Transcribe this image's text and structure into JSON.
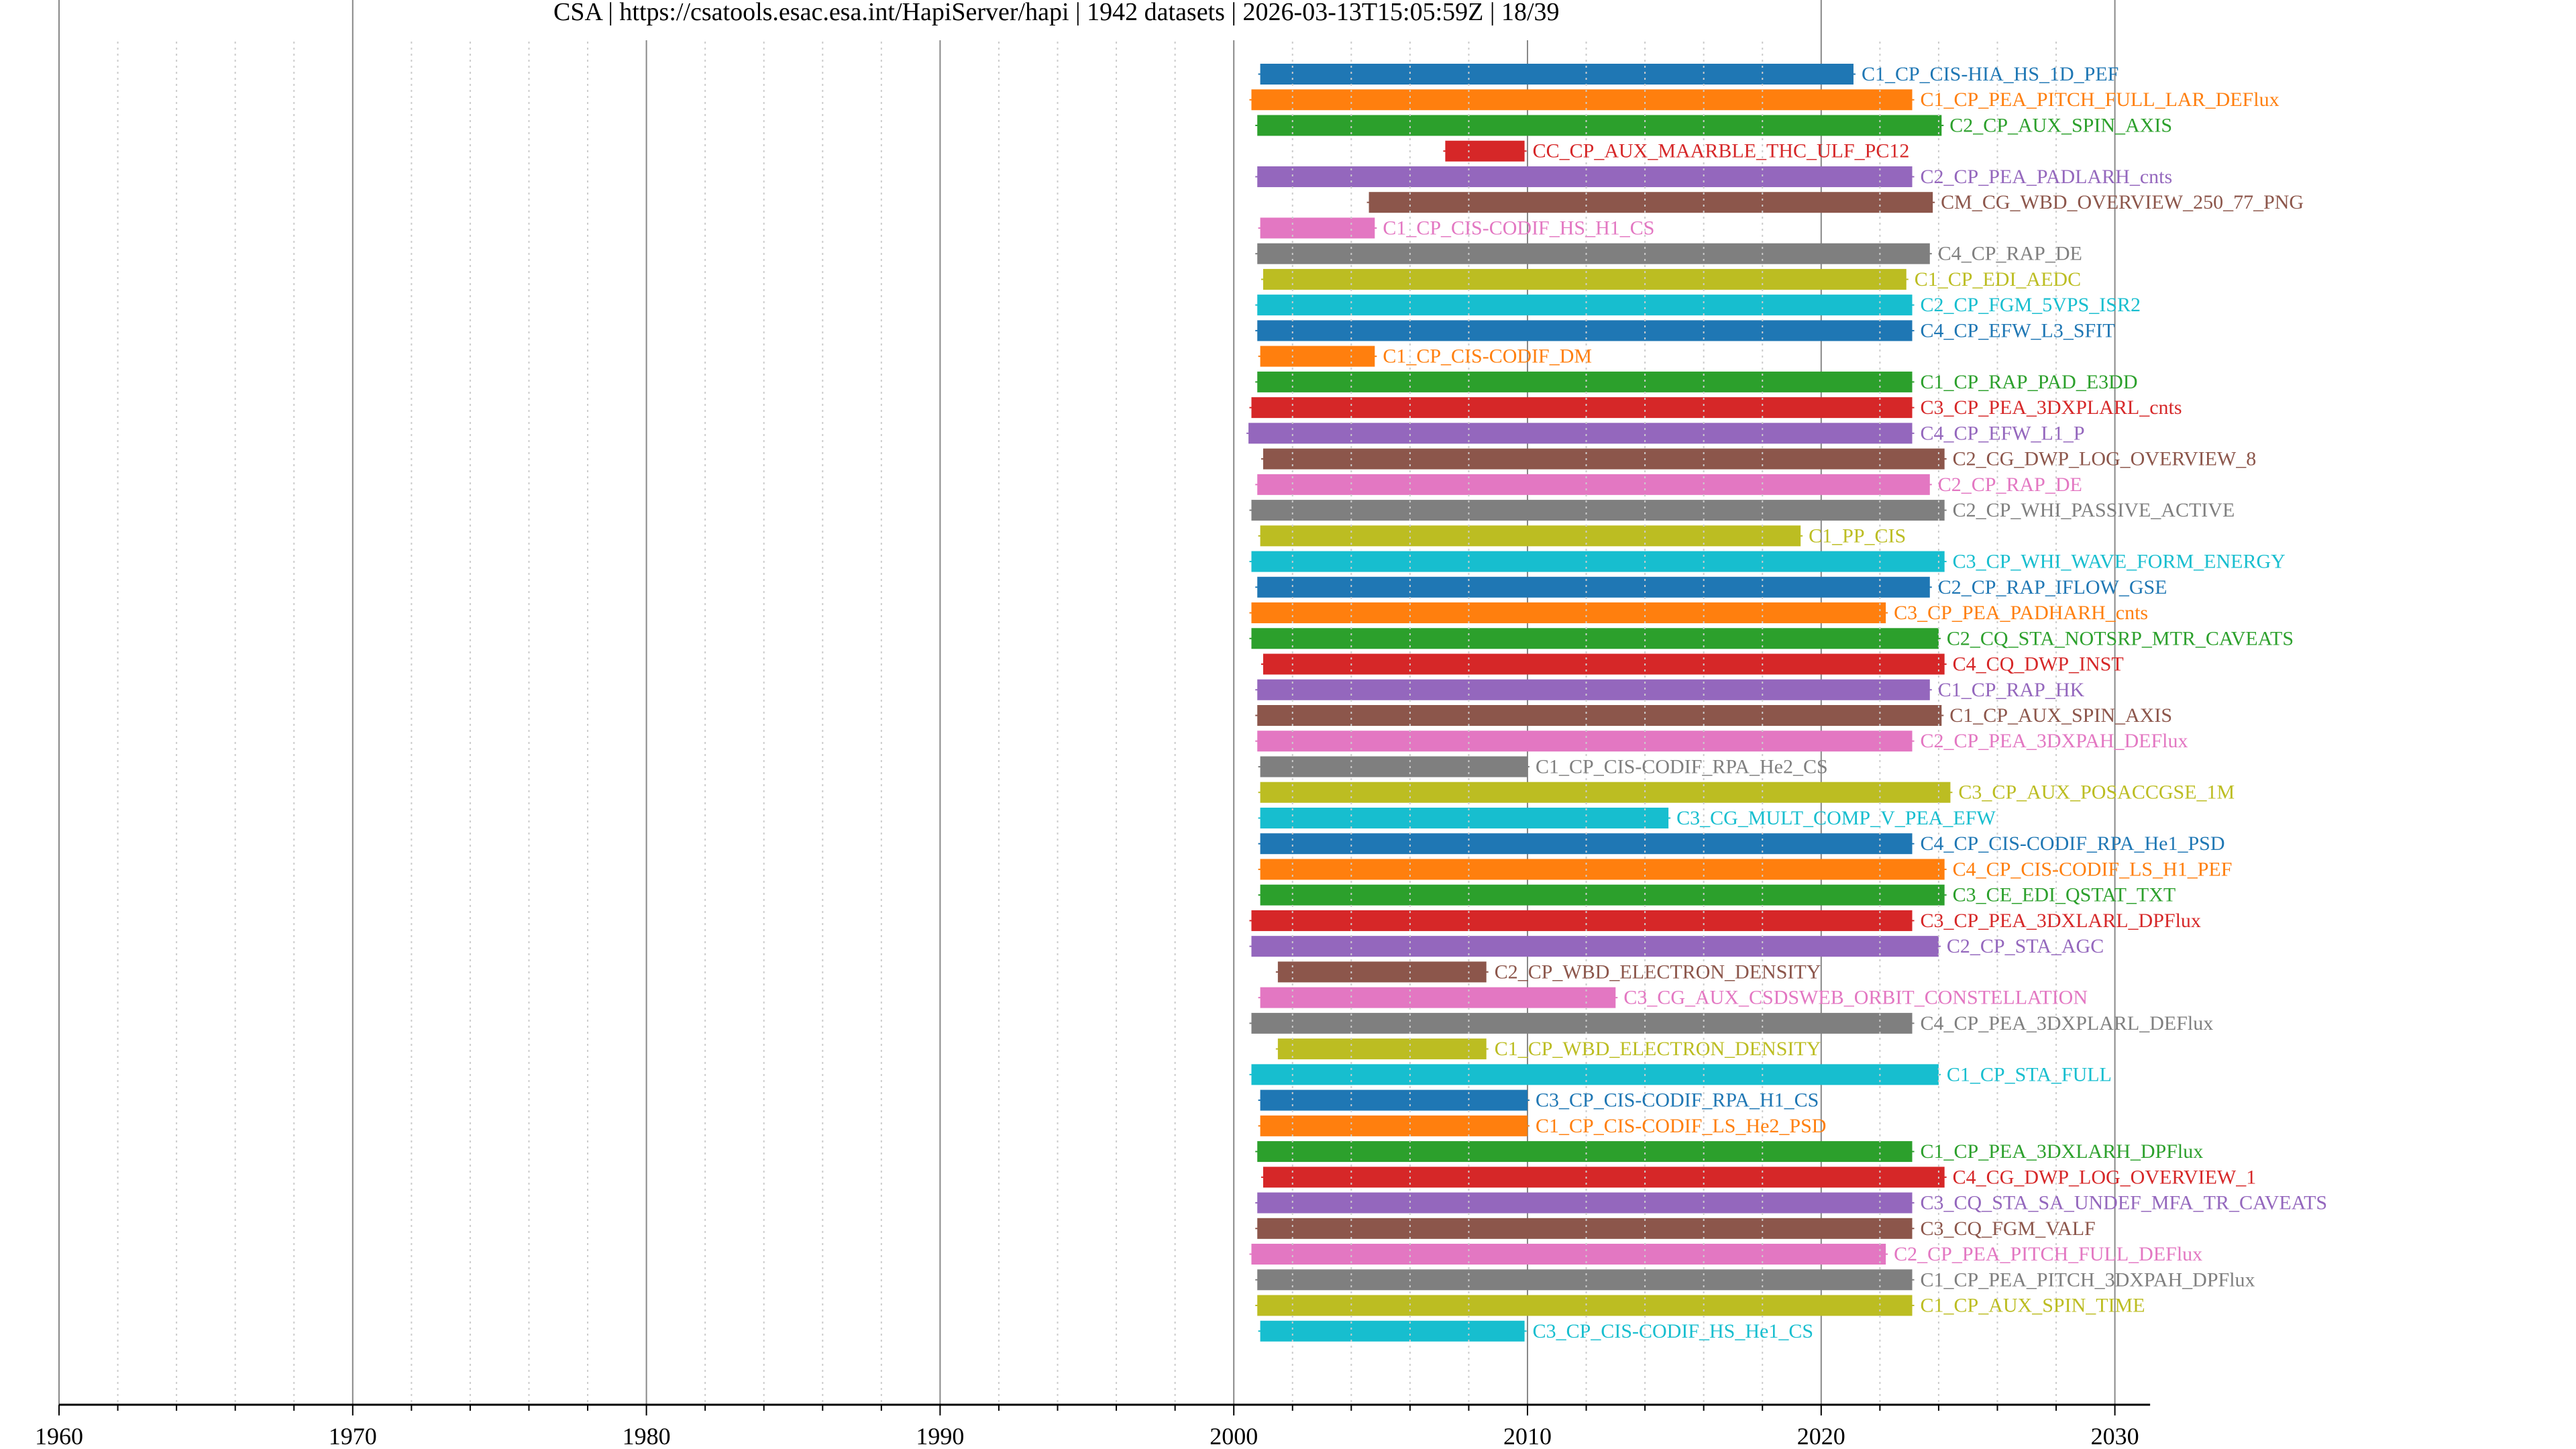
{
  "chart_data": {
    "type": "bar",
    "orientation": "horizontal-timeline",
    "title": "CSA | https://csatools.esac.esa.int/HapiServer/hapi | 1942 datasets | 2026-03-13T15:05:59Z | 18/39",
    "xlabel": "",
    "ylabel": "",
    "xlim": [
      1960,
      2031.2
    ],
    "x_major_ticks": [
      1960,
      1970,
      1980,
      1990,
      2000,
      2010,
      2020,
      2030
    ],
    "x_minor_step": 2,
    "grid": true,
    "legend": "none",
    "colors": [
      "#1f77b4",
      "#ff7f0e",
      "#2ca02c",
      "#d62728",
      "#9467bd",
      "#8c564b",
      "#e377c2",
      "#7f7f7f",
      "#bcbd22",
      "#17becf"
    ],
    "series": [
      {
        "name": "C1_CP_CIS-HIA_HS_1D_PEF",
        "start": 2000.9,
        "end": 2021.1
      },
      {
        "name": "C1_CP_PEA_PITCH_FULL_LAR_DEFlux",
        "start": 2000.6,
        "end": 2023.1
      },
      {
        "name": "C2_CP_AUX_SPIN_AXIS",
        "start": 2000.8,
        "end": 2024.1
      },
      {
        "name": "CC_CP_AUX_MAARBLE_THC_ULF_PC12",
        "start": 2007.2,
        "end": 2009.9
      },
      {
        "name": "C2_CP_PEA_PADLARH_cnts",
        "start": 2000.8,
        "end": 2023.1
      },
      {
        "name": "CM_CG_WBD_OVERVIEW_250_77_PNG",
        "start": 2004.6,
        "end": 2023.8
      },
      {
        "name": "C1_CP_CIS-CODIF_HS_H1_CS",
        "start": 2000.9,
        "end": 2004.8
      },
      {
        "name": "C4_CP_RAP_DE",
        "start": 2000.8,
        "end": 2023.7
      },
      {
        "name": "C1_CP_EDI_AEDC",
        "start": 2001.0,
        "end": 2022.9
      },
      {
        "name": "C2_CP_FGM_5VPS_ISR2",
        "start": 2000.8,
        "end": 2023.1
      },
      {
        "name": "C4_CP_EFW_L3_SFIT",
        "start": 2000.8,
        "end": 2023.1
      },
      {
        "name": "C1_CP_CIS-CODIF_DM",
        "start": 2000.9,
        "end": 2004.8
      },
      {
        "name": "C1_CP_RAP_PAD_E3DD",
        "start": 2000.8,
        "end": 2023.1
      },
      {
        "name": "C3_CP_PEA_3DXPLARL_cnts",
        "start": 2000.6,
        "end": 2023.1
      },
      {
        "name": "C4_CP_EFW_L1_P",
        "start": 2000.5,
        "end": 2023.1
      },
      {
        "name": "C2_CG_DWP_LOG_OVERVIEW_8",
        "start": 2001.0,
        "end": 2024.2
      },
      {
        "name": "C2_CP_RAP_DE",
        "start": 2000.8,
        "end": 2023.7
      },
      {
        "name": "C2_CP_WHI_PASSIVE_ACTIVE",
        "start": 2000.6,
        "end": 2024.2
      },
      {
        "name": "C1_PP_CIS",
        "start": 2000.9,
        "end": 2019.3
      },
      {
        "name": "C3_CP_WHI_WAVE_FORM_ENERGY",
        "start": 2000.6,
        "end": 2024.2
      },
      {
        "name": "C2_CP_RAP_IFLOW_GSE",
        "start": 2000.8,
        "end": 2023.7
      },
      {
        "name": "C3_CP_PEA_PADHARH_cnts",
        "start": 2000.6,
        "end": 2022.2
      },
      {
        "name": "C2_CQ_STA_NOTSRP_MTR_CAVEATS",
        "start": 2000.6,
        "end": 2024.0
      },
      {
        "name": "C4_CQ_DWP_INST",
        "start": 2001.0,
        "end": 2024.2
      },
      {
        "name": "C1_CP_RAP_HK",
        "start": 2000.8,
        "end": 2023.7
      },
      {
        "name": "C1_CP_AUX_SPIN_AXIS",
        "start": 2000.8,
        "end": 2024.1
      },
      {
        "name": "C2_CP_PEA_3DXPAH_DEFlux",
        "start": 2000.8,
        "end": 2023.1
      },
      {
        "name": "C1_CP_CIS-CODIF_RPA_He2_CS",
        "start": 2000.9,
        "end": 2010.0
      },
      {
        "name": "C3_CP_AUX_POSACCGSE_1M",
        "start": 2000.9,
        "end": 2024.4
      },
      {
        "name": "C3_CG_MULT_COMP_V_PEA_EFW",
        "start": 2000.9,
        "end": 2014.8
      },
      {
        "name": "C4_CP_CIS-CODIF_RPA_He1_PSD",
        "start": 2000.9,
        "end": 2023.1
      },
      {
        "name": "C4_CP_CIS-CODIF_LS_H1_PEF",
        "start": 2000.9,
        "end": 2024.2
      },
      {
        "name": "C3_CE_EDI_QSTAT_TXT",
        "start": 2000.9,
        "end": 2024.2
      },
      {
        "name": "C3_CP_PEA_3DXLARL_DPFlux",
        "start": 2000.6,
        "end": 2023.1
      },
      {
        "name": "C2_CP_STA_AGC",
        "start": 2000.6,
        "end": 2024.0
      },
      {
        "name": "C2_CP_WBD_ELECTRON_DENSITY",
        "start": 2001.5,
        "end": 2008.6
      },
      {
        "name": "C3_CG_AUX_CSDSWEB_ORBIT_CONSTELLATION",
        "start": 2000.9,
        "end": 2013.0
      },
      {
        "name": "C4_CP_PEA_3DXPLARL_DEFlux",
        "start": 2000.6,
        "end": 2023.1
      },
      {
        "name": "C1_CP_WBD_ELECTRON_DENSITY",
        "start": 2001.5,
        "end": 2008.6
      },
      {
        "name": "C1_CP_STA_FULL",
        "start": 2000.6,
        "end": 2024.0
      },
      {
        "name": "C3_CP_CIS-CODIF_RPA_H1_CS",
        "start": 2000.9,
        "end": 2010.0
      },
      {
        "name": "C1_CP_CIS-CODIF_LS_He2_PSD",
        "start": 2000.9,
        "end": 2010.0
      },
      {
        "name": "C1_CP_PEA_3DXLARH_DPFlux",
        "start": 2000.8,
        "end": 2023.1
      },
      {
        "name": "C4_CG_DWP_LOG_OVERVIEW_1",
        "start": 2001.0,
        "end": 2024.2
      },
      {
        "name": "C3_CQ_STA_SA_UNDEF_MFA_TR_CAVEATS",
        "start": 2000.8,
        "end": 2023.1
      },
      {
        "name": "C3_CQ_FGM_VALF",
        "start": 2000.8,
        "end": 2023.1
      },
      {
        "name": "C2_CP_PEA_PITCH_FULL_DEFlux",
        "start": 2000.6,
        "end": 2022.2
      },
      {
        "name": "C1_CP_PEA_PITCH_3DXPAH_DPFlux",
        "start": 2000.8,
        "end": 2023.1
      },
      {
        "name": "C1_CP_AUX_SPIN_TIME",
        "start": 2000.8,
        "end": 2023.1
      },
      {
        "name": "C3_CP_CIS-CODIF_HS_He1_CS",
        "start": 2000.9,
        "end": 2009.9
      }
    ]
  }
}
